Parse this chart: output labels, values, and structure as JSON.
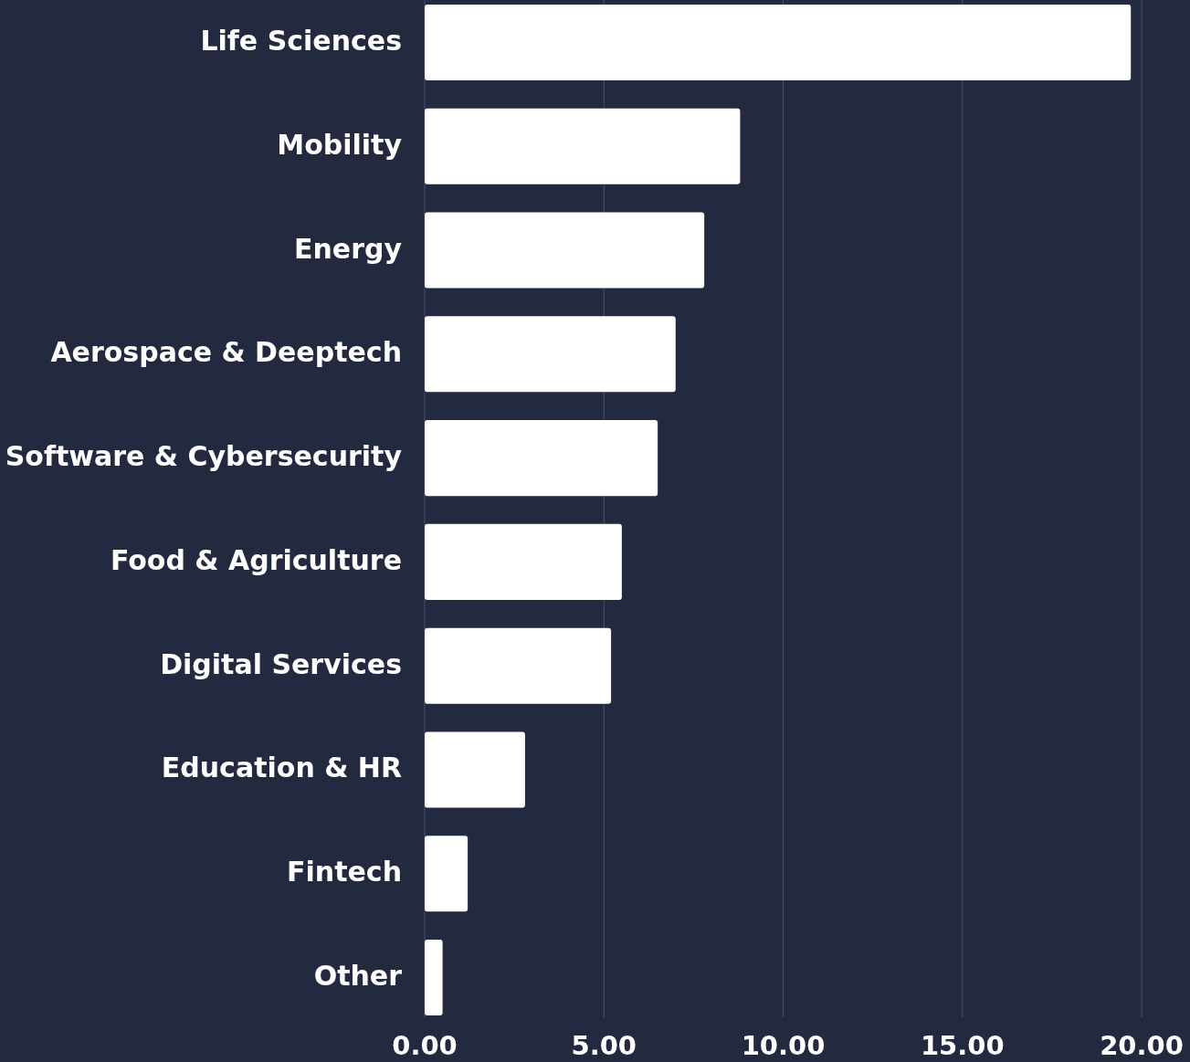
{
  "chart_data": {
    "type": "bar",
    "orientation": "horizontal",
    "categories": [
      "Life Sciences",
      "Mobility",
      "Energy",
      "Aerospace & Deeptech",
      "Software & Cybersecurity",
      "Food & Agriculture",
      "Digital Services",
      "Education & HR",
      "Fintech",
      "Other"
    ],
    "values": [
      19.7,
      8.8,
      7.8,
      7.0,
      6.5,
      5.5,
      5.2,
      2.8,
      1.2,
      0.5
    ],
    "color": "#ffffff",
    "xlim": [
      0,
      20
    ],
    "xticks": [
      {
        "value": 0,
        "label": "0.00"
      },
      {
        "value": 5,
        "label": "5.00"
      },
      {
        "value": 10,
        "label": "10.00"
      },
      {
        "value": 15,
        "label": "15.00"
      },
      {
        "value": 20,
        "label": "20.00"
      }
    ],
    "grid": "x"
  }
}
